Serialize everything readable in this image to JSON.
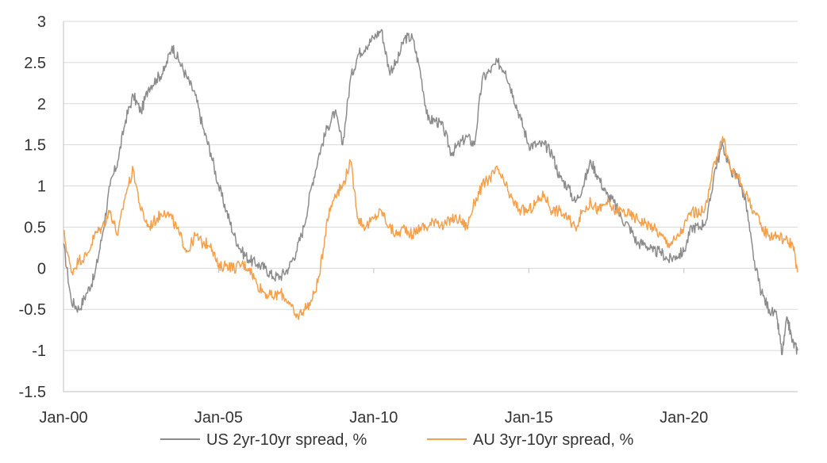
{
  "chart_data": {
    "type": "line",
    "title": "",
    "xlabel": "",
    "ylabel": "",
    "ylim": [
      -1.5,
      3
    ],
    "yticks": [
      -1.5,
      -1,
      -0.5,
      0,
      0.5,
      1,
      1.5,
      2,
      2.5,
      3
    ],
    "ytick_labels": [
      "-1.5",
      "-1",
      "-0.5",
      "0",
      "0.5",
      "1",
      "1.5",
      "2",
      "2.5",
      "3"
    ],
    "xlim": [
      "2000-01",
      "2023-09"
    ],
    "xticks": [
      "2000-01",
      "2005-01",
      "2010-01",
      "2015-01",
      "2020-01"
    ],
    "xtick_labels": [
      "Jan-00",
      "Jan-05",
      "Jan-10",
      "Jan-15",
      "Jan-20"
    ],
    "grid": "horizontal",
    "legend_position": "bottom",
    "series": [
      {
        "name": "US 2yr-10yr spread, %",
        "color": "#8c8c8c",
        "points": [
          [
            "2000-01",
            0.3
          ],
          [
            "2000-04",
            -0.4
          ],
          [
            "2000-07",
            -0.5
          ],
          [
            "2000-10",
            -0.3
          ],
          [
            "2001-01",
            -0.1
          ],
          [
            "2001-04",
            0.4
          ],
          [
            "2001-07",
            1.0
          ],
          [
            "2001-10",
            1.3
          ],
          [
            "2002-01",
            1.8
          ],
          [
            "2002-04",
            2.1
          ],
          [
            "2002-07",
            1.9
          ],
          [
            "2002-10",
            2.2
          ],
          [
            "2003-01",
            2.3
          ],
          [
            "2003-04",
            2.4
          ],
          [
            "2003-07",
            2.7
          ],
          [
            "2003-10",
            2.5
          ],
          [
            "2004-01",
            2.3
          ],
          [
            "2004-04",
            2.1
          ],
          [
            "2004-07",
            1.7
          ],
          [
            "2004-10",
            1.4
          ],
          [
            "2005-01",
            1.0
          ],
          [
            "2005-04",
            0.7
          ],
          [
            "2005-07",
            0.4
          ],
          [
            "2005-10",
            0.2
          ],
          [
            "2006-01",
            0.1
          ],
          [
            "2006-04",
            0.05
          ],
          [
            "2006-07",
            0.0
          ],
          [
            "2006-10",
            -0.1
          ],
          [
            "2007-01",
            -0.1
          ],
          [
            "2007-04",
            0.0
          ],
          [
            "2007-07",
            0.2
          ],
          [
            "2007-10",
            0.5
          ],
          [
            "2008-01",
            1.0
          ],
          [
            "2008-04",
            1.4
          ],
          [
            "2008-07",
            1.7
          ],
          [
            "2008-10",
            1.9
          ],
          [
            "2009-01",
            1.5
          ],
          [
            "2009-04",
            2.3
          ],
          [
            "2009-07",
            2.6
          ],
          [
            "2009-10",
            2.7
          ],
          [
            "2010-01",
            2.8
          ],
          [
            "2010-04",
            2.9
          ],
          [
            "2010-07",
            2.4
          ],
          [
            "2010-10",
            2.5
          ],
          [
            "2011-01",
            2.8
          ],
          [
            "2011-04",
            2.8
          ],
          [
            "2011-07",
            2.4
          ],
          [
            "2011-10",
            1.8
          ],
          [
            "2012-01",
            1.8
          ],
          [
            "2012-04",
            1.7
          ],
          [
            "2012-07",
            1.4
          ],
          [
            "2012-10",
            1.5
          ],
          [
            "2013-01",
            1.6
          ],
          [
            "2013-04",
            1.5
          ],
          [
            "2013-07",
            2.3
          ],
          [
            "2013-10",
            2.4
          ],
          [
            "2014-01",
            2.5
          ],
          [
            "2014-04",
            2.4
          ],
          [
            "2014-07",
            2.1
          ],
          [
            "2014-10",
            1.8
          ],
          [
            "2015-01",
            1.5
          ],
          [
            "2015-04",
            1.5
          ],
          [
            "2015-07",
            1.5
          ],
          [
            "2015-10",
            1.4
          ],
          [
            "2016-01",
            1.1
          ],
          [
            "2016-04",
            1.0
          ],
          [
            "2016-07",
            0.8
          ],
          [
            "2016-10",
            1.0
          ],
          [
            "2017-01",
            1.3
          ],
          [
            "2017-04",
            1.1
          ],
          [
            "2017-07",
            0.9
          ],
          [
            "2017-10",
            0.8
          ],
          [
            "2018-01",
            0.6
          ],
          [
            "2018-04",
            0.5
          ],
          [
            "2018-07",
            0.3
          ],
          [
            "2018-10",
            0.3
          ],
          [
            "2019-01",
            0.2
          ],
          [
            "2019-04",
            0.2
          ],
          [
            "2019-07",
            0.1
          ],
          [
            "2019-10",
            0.15
          ],
          [
            "2020-01",
            0.2
          ],
          [
            "2020-04",
            0.5
          ],
          [
            "2020-07",
            0.5
          ],
          [
            "2020-10",
            0.6
          ],
          [
            "2021-01",
            1.2
          ],
          [
            "2021-04",
            1.5
          ],
          [
            "2021-07",
            1.2
          ],
          [
            "2021-10",
            1.1
          ],
          [
            "2022-01",
            0.8
          ],
          [
            "2022-04",
            0.1
          ],
          [
            "2022-07",
            -0.3
          ],
          [
            "2022-10",
            -0.5
          ],
          [
            "2023-01",
            -0.6
          ],
          [
            "2023-03",
            -1.05
          ],
          [
            "2023-05",
            -0.6
          ],
          [
            "2023-07",
            -0.9
          ],
          [
            "2023-09",
            -1.0
          ]
        ]
      },
      {
        "name": "AU 3yr-10yr spread, %",
        "color": "#f5a04a",
        "points": [
          [
            "2000-01",
            0.45
          ],
          [
            "2000-04",
            -0.05
          ],
          [
            "2000-07",
            0.1
          ],
          [
            "2000-10",
            0.15
          ],
          [
            "2001-01",
            0.4
          ],
          [
            "2001-04",
            0.5
          ],
          [
            "2001-07",
            0.7
          ],
          [
            "2001-10",
            0.4
          ],
          [
            "2002-01",
            0.9
          ],
          [
            "2002-04",
            1.2
          ],
          [
            "2002-07",
            0.7
          ],
          [
            "2002-10",
            0.5
          ],
          [
            "2003-01",
            0.6
          ],
          [
            "2003-04",
            0.7
          ],
          [
            "2003-07",
            0.6
          ],
          [
            "2003-10",
            0.4
          ],
          [
            "2004-01",
            0.2
          ],
          [
            "2004-04",
            0.4
          ],
          [
            "2004-07",
            0.3
          ],
          [
            "2004-10",
            0.3
          ],
          [
            "2005-01",
            0.0
          ],
          [
            "2005-04",
            0.05
          ],
          [
            "2005-07",
            0.0
          ],
          [
            "2005-10",
            0.05
          ],
          [
            "2006-01",
            0.0
          ],
          [
            "2006-04",
            -0.2
          ],
          [
            "2006-07",
            -0.3
          ],
          [
            "2006-10",
            -0.35
          ],
          [
            "2007-01",
            -0.3
          ],
          [
            "2007-04",
            -0.4
          ],
          [
            "2007-07",
            -0.6
          ],
          [
            "2007-10",
            -0.5
          ],
          [
            "2008-01",
            -0.4
          ],
          [
            "2008-04",
            -0.1
          ],
          [
            "2008-07",
            0.6
          ],
          [
            "2008-10",
            0.9
          ],
          [
            "2009-01",
            1.0
          ],
          [
            "2009-04",
            1.3
          ],
          [
            "2009-07",
            0.6
          ],
          [
            "2009-10",
            0.5
          ],
          [
            "2010-01",
            0.6
          ],
          [
            "2010-04",
            0.7
          ],
          [
            "2010-07",
            0.5
          ],
          [
            "2010-10",
            0.4
          ],
          [
            "2011-01",
            0.5
          ],
          [
            "2011-04",
            0.4
          ],
          [
            "2011-07",
            0.5
          ],
          [
            "2011-10",
            0.5
          ],
          [
            "2012-01",
            0.6
          ],
          [
            "2012-04",
            0.5
          ],
          [
            "2012-07",
            0.6
          ],
          [
            "2012-10",
            0.6
          ],
          [
            "2013-01",
            0.5
          ],
          [
            "2013-04",
            0.8
          ],
          [
            "2013-07",
            1.0
          ],
          [
            "2013-10",
            1.1
          ],
          [
            "2014-01",
            1.2
          ],
          [
            "2014-04",
            1.0
          ],
          [
            "2014-07",
            0.8
          ],
          [
            "2014-10",
            0.7
          ],
          [
            "2015-01",
            0.7
          ],
          [
            "2015-04",
            0.8
          ],
          [
            "2015-07",
            0.9
          ],
          [
            "2015-10",
            0.7
          ],
          [
            "2016-01",
            0.7
          ],
          [
            "2016-04",
            0.6
          ],
          [
            "2016-07",
            0.5
          ],
          [
            "2016-10",
            0.7
          ],
          [
            "2017-01",
            0.8
          ],
          [
            "2017-04",
            0.7
          ],
          [
            "2017-07",
            0.8
          ],
          [
            "2017-10",
            0.7
          ],
          [
            "2018-01",
            0.7
          ],
          [
            "2018-04",
            0.65
          ],
          [
            "2018-07",
            0.6
          ],
          [
            "2018-10",
            0.55
          ],
          [
            "2019-01",
            0.5
          ],
          [
            "2019-04",
            0.4
          ],
          [
            "2019-07",
            0.3
          ],
          [
            "2019-10",
            0.35
          ],
          [
            "2020-01",
            0.5
          ],
          [
            "2020-04",
            0.7
          ],
          [
            "2020-07",
            0.65
          ],
          [
            "2020-10",
            0.8
          ],
          [
            "2021-01",
            1.3
          ],
          [
            "2021-04",
            1.6
          ],
          [
            "2021-07",
            1.2
          ],
          [
            "2021-10",
            1.1
          ],
          [
            "2022-01",
            0.9
          ],
          [
            "2022-04",
            0.7
          ],
          [
            "2022-07",
            0.5
          ],
          [
            "2022-10",
            0.4
          ],
          [
            "2023-01",
            0.4
          ],
          [
            "2023-04",
            0.35
          ],
          [
            "2023-07",
            0.3
          ],
          [
            "2023-09",
            -0.05
          ]
        ]
      }
    ]
  }
}
